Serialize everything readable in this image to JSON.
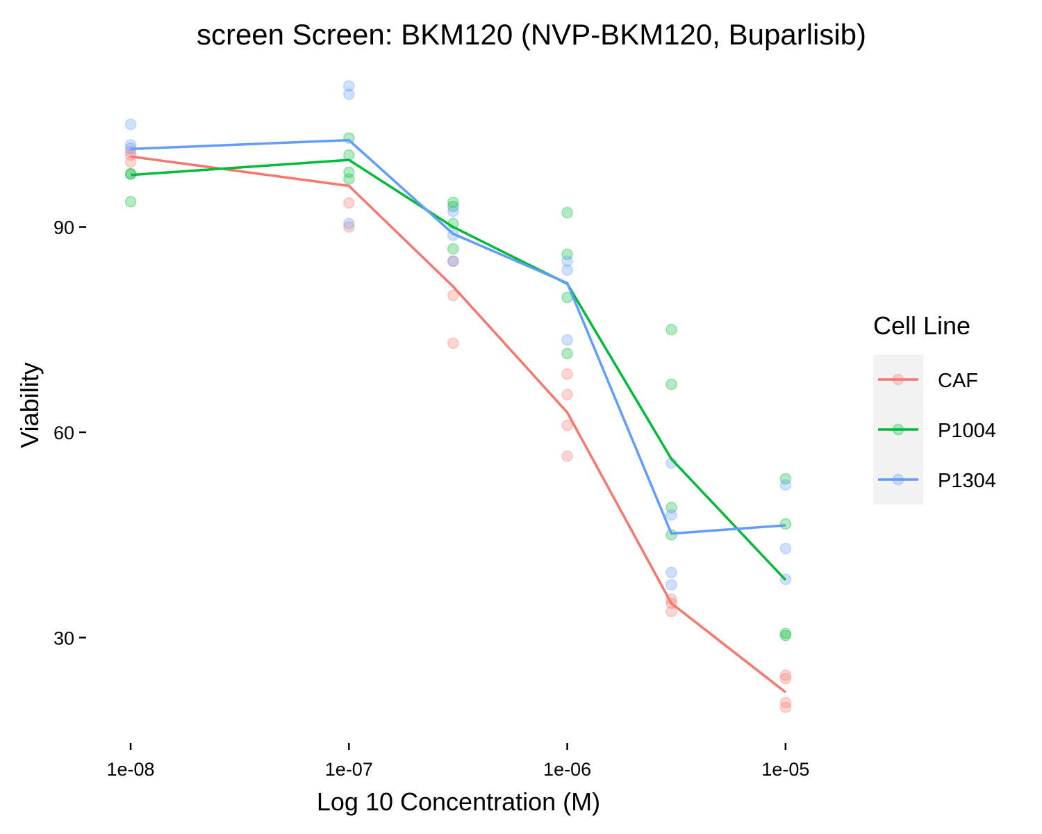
{
  "chart_data": {
    "type": "scatter",
    "title": "screen Screen: BKM120 (NVP-BKM120, Buparlisib)",
    "xlabel": "Log 10 Concentration (M)",
    "ylabel": "Viability",
    "x_scale": "log10",
    "x_ticks": [
      1e-08,
      1e-07,
      1e-06,
      1e-05
    ],
    "x_tick_labels": [
      "1e-08",
      "1e-07",
      "1e-06",
      "1e-05"
    ],
    "y_ticks": [
      30,
      60,
      90
    ],
    "y_tick_labels": [
      "30",
      "60",
      "90"
    ],
    "xlim": [
      6.3e-09,
      1.6e-05
    ],
    "ylim": [
      15,
      112
    ],
    "grid": false,
    "legend": {
      "title": "Cell Line",
      "position": "right"
    },
    "series": [
      {
        "name": "CAF",
        "color": "#F8766D",
        "mean_line": [
          [
            1e-08,
            100.3
          ],
          [
            1e-07,
            96.0
          ],
          [
            3e-07,
            81.3
          ],
          [
            1e-06,
            62.9
          ],
          [
            3e-06,
            35.0
          ],
          [
            1e-05,
            22.0
          ]
        ],
        "points": [
          [
            1e-08,
            101.0
          ],
          [
            1e-08,
            100.5
          ],
          [
            1e-08,
            99.5
          ],
          [
            1e-07,
            93.5
          ],
          [
            1e-07,
            90.0
          ],
          [
            3e-07,
            85.0
          ],
          [
            3e-07,
            80.0
          ],
          [
            3e-07,
            73.0
          ],
          [
            1e-06,
            68.5
          ],
          [
            1e-06,
            65.5
          ],
          [
            1e-06,
            61.0
          ],
          [
            1e-06,
            56.5
          ],
          [
            3e-06,
            35.6
          ],
          [
            3e-06,
            35.0
          ],
          [
            3e-06,
            33.8
          ],
          [
            1e-05,
            24.5
          ],
          [
            1e-05,
            24.0
          ],
          [
            1e-05,
            20.5
          ],
          [
            1e-05,
            19.8
          ]
        ]
      },
      {
        "name": "P1004",
        "color": "#00BA38",
        "mean_line": [
          [
            1e-08,
            97.6
          ],
          [
            1e-07,
            99.8
          ],
          [
            3e-07,
            90.0
          ],
          [
            1e-06,
            81.7
          ],
          [
            3e-06,
            56.1
          ],
          [
            1e-05,
            38.4
          ]
        ],
        "points": [
          [
            1e-08,
            97.8
          ],
          [
            1e-08,
            97.7
          ],
          [
            1e-08,
            93.7
          ],
          [
            1e-07,
            103.0
          ],
          [
            1e-07,
            100.5
          ],
          [
            1e-07,
            98.0
          ],
          [
            1e-07,
            97.0
          ],
          [
            3e-07,
            93.6
          ],
          [
            3e-07,
            93.0
          ],
          [
            3e-07,
            90.5
          ],
          [
            3e-07,
            86.8
          ],
          [
            1e-06,
            92.1
          ],
          [
            1e-06,
            86.0
          ],
          [
            1e-06,
            79.7
          ],
          [
            1e-06,
            71.5
          ],
          [
            3e-06,
            75.0
          ],
          [
            3e-06,
            67.0
          ],
          [
            3e-06,
            49.0
          ],
          [
            3e-06,
            45.0
          ],
          [
            1e-05,
            53.2
          ],
          [
            1e-05,
            46.6
          ],
          [
            1e-05,
            30.6
          ],
          [
            1e-05,
            30.3
          ]
        ]
      },
      {
        "name": "P1304",
        "color": "#619CFF",
        "mean_line": [
          [
            1e-08,
            101.4
          ],
          [
            1e-07,
            102.7
          ],
          [
            3e-07,
            89.0
          ],
          [
            1e-06,
            81.8
          ],
          [
            3e-06,
            45.2
          ],
          [
            1e-05,
            46.4
          ]
        ],
        "points": [
          [
            1e-08,
            105.0
          ],
          [
            1e-08,
            102.0
          ],
          [
            1e-08,
            101.5
          ],
          [
            1e-07,
            110.6
          ],
          [
            1e-07,
            109.4
          ],
          [
            1e-07,
            90.5
          ],
          [
            3e-07,
            92.3
          ],
          [
            3e-07,
            88.8
          ],
          [
            3e-07,
            85.0
          ],
          [
            1e-06,
            85.0
          ],
          [
            1e-06,
            83.7
          ],
          [
            1e-06,
            73.5
          ],
          [
            3e-06,
            55.5
          ],
          [
            3e-06,
            47.9
          ],
          [
            3e-06,
            39.5
          ],
          [
            3e-06,
            37.7
          ],
          [
            1e-05,
            52.3
          ],
          [
            1e-05,
            43.0
          ],
          [
            1e-05,
            38.5
          ]
        ]
      }
    ]
  }
}
